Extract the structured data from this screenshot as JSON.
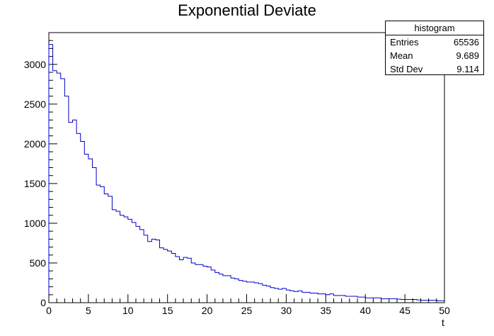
{
  "chart_data": {
    "type": "bar",
    "title": "Exponential Deviate",
    "xlabel": "t",
    "ylabel": "",
    "xlim": [
      0,
      50
    ],
    "ylim": [
      0,
      3400
    ],
    "bin_width": 0.5,
    "x_ticks": [
      "0",
      "5",
      "10",
      "15",
      "20",
      "25",
      "30",
      "35",
      "40",
      "45",
      "50"
    ],
    "y_ticks": [
      "0",
      "500",
      "1000",
      "1500",
      "2000",
      "2500",
      "3000"
    ],
    "line_color": "#0000cc",
    "bin_edges_start": 0,
    "values": [
      3250,
      2920,
      2890,
      2820,
      2600,
      2270,
      2300,
      2130,
      2030,
      1870,
      1810,
      1700,
      1480,
      1460,
      1370,
      1340,
      1170,
      1150,
      1100,
      1080,
      1050,
      1010,
      960,
      920,
      850,
      770,
      800,
      790,
      690,
      670,
      650,
      620,
      580,
      540,
      570,
      560,
      500,
      480,
      480,
      460,
      450,
      410,
      380,
      360,
      340,
      340,
      310,
      300,
      280,
      270,
      260,
      260,
      250,
      240,
      220,
      210,
      190,
      180,
      170,
      180,
      160,
      150,
      140,
      150,
      130,
      130,
      120,
      120,
      110,
      110,
      100,
      110,
      90,
      90,
      90,
      80,
      80,
      80,
      70,
      70,
      60,
      60,
      60,
      60,
      50,
      50,
      50,
      50,
      45,
      40,
      40,
      40,
      40,
      35,
      30,
      30,
      30,
      30,
      25,
      25
    ]
  },
  "stats": {
    "header": "histogram",
    "rows": [
      {
        "key": "Entries",
        "value": "65536"
      },
      {
        "key": "Mean",
        "value": "9.689"
      },
      {
        "key": "Std Dev",
        "value": "9.114"
      }
    ]
  }
}
